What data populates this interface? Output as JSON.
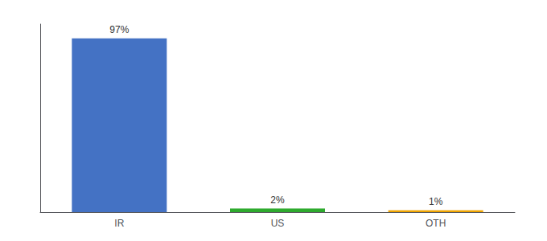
{
  "chart_data": {
    "type": "bar",
    "categories": [
      "IR",
      "US",
      "OTH"
    ],
    "values": [
      97,
      2,
      1
    ],
    "value_labels": [
      "97%",
      "2%",
      "1%"
    ],
    "colors": [
      "#4472C4",
      "#2EAA2E",
      "#F0A500"
    ],
    "ylim": [
      0,
      105
    ],
    "grid": false,
    "data_labels": true,
    "tick_labels": "x"
  }
}
